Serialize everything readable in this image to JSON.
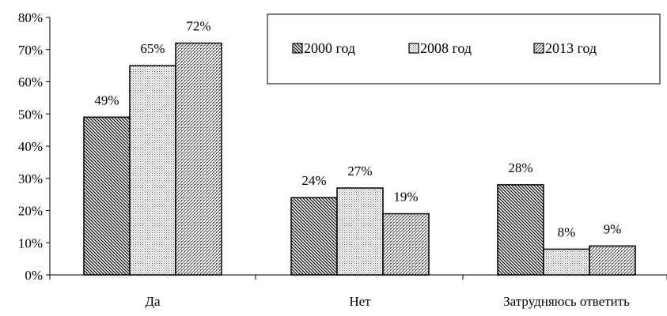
{
  "chart_data": {
    "type": "bar",
    "categories": [
      "Да",
      "Нет",
      "Затрудняюсь ответить"
    ],
    "series": [
      {
        "name": "2000 год",
        "values": [
          49,
          24,
          28
        ],
        "pattern": "diag-dense"
      },
      {
        "name": "2008 год",
        "values": [
          65,
          27,
          8
        ],
        "pattern": "dots"
      },
      {
        "name": "2013 год",
        "values": [
          72,
          19,
          9
        ],
        "pattern": "diag-light"
      }
    ],
    "data_labels": [
      [
        "49%",
        "24%",
        "28%"
      ],
      [
        "65%",
        "27%",
        "8%"
      ],
      [
        "72%",
        "19%",
        "9%"
      ]
    ],
    "ylim": [
      0,
      80
    ],
    "ytick_labels": [
      "0%",
      "10%",
      "20%",
      "30%",
      "40%",
      "50%",
      "60%",
      "70%",
      "80%"
    ],
    "grid": false,
    "legend_position": "top-right",
    "colors": {
      "ink": "#000000",
      "background": "#ffffff"
    }
  }
}
